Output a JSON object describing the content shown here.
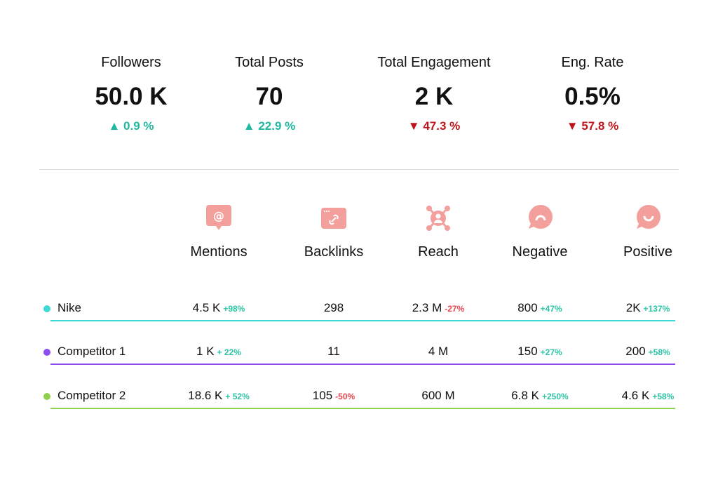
{
  "kpis": [
    {
      "label": "Followers",
      "value": "50.0 K",
      "change": "0.9 %",
      "direction": "up"
    },
    {
      "label": "Total Posts",
      "value": "70",
      "change": "22.9 %",
      "direction": "up"
    },
    {
      "label": "Total Engagement",
      "value": "2 K",
      "change": "47.3 %",
      "direction": "down"
    },
    {
      "label": "Eng. Rate",
      "value": "0.5%",
      "change": "57.8 %",
      "direction": "down"
    }
  ],
  "columns": [
    {
      "label": "Mentions",
      "icon": "mention-bubble-icon"
    },
    {
      "label": "Backlinks",
      "icon": "link-window-icon"
    },
    {
      "label": "Reach",
      "icon": "network-person-icon"
    },
    {
      "label": "Negative",
      "icon": "sad-face-bubble-icon"
    },
    {
      "label": "Positive",
      "icon": "happy-face-bubble-icon"
    }
  ],
  "colors": {
    "icon": "#f3a09d",
    "up": "#1fb8a0",
    "down": "#c0141b",
    "delta_up": "#2cc4a5",
    "delta_down": "#e8474f"
  },
  "rows": [
    {
      "name": "Nike",
      "color": "#3dd9d6",
      "cells": [
        {
          "value": "4.5 K",
          "delta": "+98%",
          "dir": "up"
        },
        {
          "value": "298",
          "delta": "",
          "dir": ""
        },
        {
          "value": "2.3 M",
          "delta": "-27%",
          "dir": "down"
        },
        {
          "value": "800",
          "delta": "+47%",
          "dir": "up"
        },
        {
          "value": "2K",
          "delta": "+137%",
          "dir": "up"
        }
      ]
    },
    {
      "name": "Competitor 1",
      "color": "#8b4df0",
      "cells": [
        {
          "value": "1 K",
          "delta": "+ 22%",
          "dir": "up"
        },
        {
          "value": "11",
          "delta": "",
          "dir": ""
        },
        {
          "value": "4 M",
          "delta": "",
          "dir": ""
        },
        {
          "value": "150",
          "delta": "+27%",
          "dir": "up"
        },
        {
          "value": "200",
          "delta": "+58%",
          "dir": "up"
        }
      ]
    },
    {
      "name": "Competitor 2",
      "color": "#8fd14f",
      "cells": [
        {
          "value": "18.6 K",
          "delta": "+ 52%",
          "dir": "up"
        },
        {
          "value": "105",
          "delta": "-50%",
          "dir": "down"
        },
        {
          "value": "600 M",
          "delta": "",
          "dir": ""
        },
        {
          "value": "6.8 K",
          "delta": "+250%",
          "dir": "up"
        },
        {
          "value": "4.6 K",
          "delta": "+58%",
          "dir": "up"
        }
      ]
    }
  ]
}
